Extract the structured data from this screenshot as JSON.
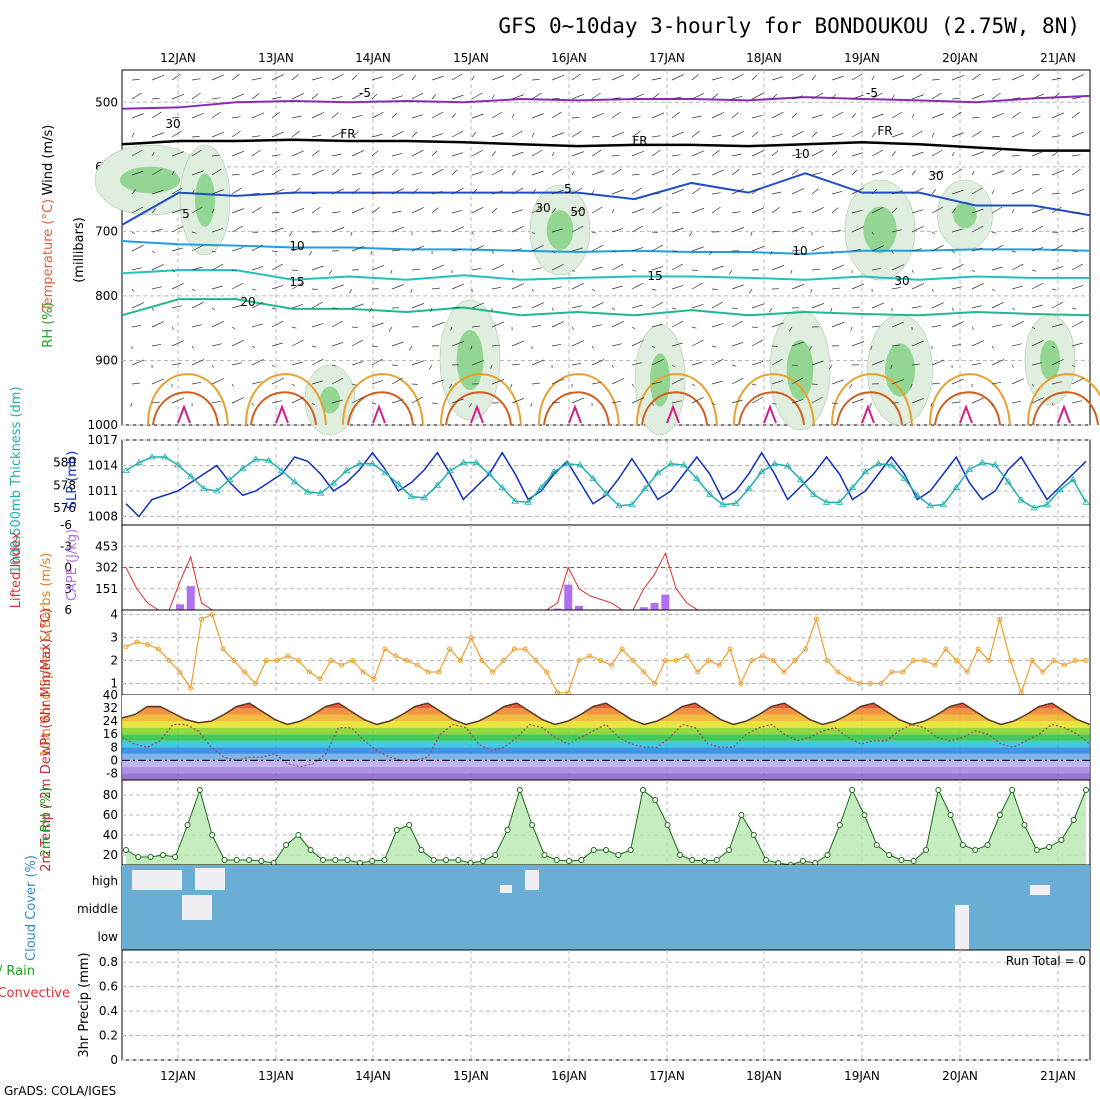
{
  "header": {
    "title": "GFS 0~10day 3-hourly for BONDOUKOU (2.75W, 8N)",
    "credit": "GrADS: COLA/IGES"
  },
  "colors": {
    "temp_minus5": "#8a2bb8",
    "temp_5": "#1f4fc8",
    "temp_10": "#1fa0e0",
    "temp_15": "#20c0c0",
    "temp_20": "#20b890",
    "freezing": "#000000",
    "slp": "#1030c0",
    "thickness": "#20b0b0",
    "cape": "#b070f0",
    "lifted_index": "#e03030",
    "wind": "#f0a030",
    "dewpoint": "#a05060",
    "rh": "#20b020",
    "cloud": "#6aaed6"
  },
  "chart_data": [
    {
      "type": "line",
      "panel": "upper-air",
      "title": "GFS 0~10day 3-hourly for BONDOUKOU (2.75W, 8N)",
      "xlabel": "",
      "ylabel": "(millibars)",
      "side_labels": [
        "Wind (m/s)",
        "Temperature (°C)",
        "RH (%)"
      ],
      "x_ticks": [
        "12JAN",
        "13JAN",
        "14JAN",
        "15JAN",
        "16JAN",
        "17JAN",
        "18JAN",
        "19JAN",
        "20JAN",
        "21JAN"
      ],
      "y_ticks": [
        "500",
        "600",
        "700",
        "800",
        "900",
        "1000"
      ],
      "ylim": [
        1000,
        450
      ],
      "contour_labels": [
        "-5",
        "-5",
        "FR",
        "FR",
        "FR",
        "5",
        "5",
        "10",
        "10",
        "15",
        "15",
        "20",
        "30",
        "30",
        "50",
        "10",
        "30",
        "30"
      ],
      "series": [
        {
          "name": "-5",
          "values": [
            510,
            508,
            500,
            498,
            500,
            498,
            500,
            495,
            497,
            495,
            495,
            497,
            492,
            495,
            497,
            500,
            494,
            490
          ]
        },
        {
          "name": "FR",
          "values": [
            565,
            560,
            560,
            558,
            560,
            560,
            562,
            565,
            568,
            566,
            566,
            568,
            565,
            562,
            565,
            570,
            575,
            575
          ]
        },
        {
          "name": "5",
          "values": [
            690,
            640,
            645,
            640,
            640,
            640,
            640,
            640,
            640,
            650,
            625,
            640,
            610,
            640,
            640,
            660,
            660,
            675
          ]
        },
        {
          "name": "10",
          "values": [
            715,
            720,
            722,
            725,
            725,
            728,
            728,
            730,
            732,
            730,
            732,
            732,
            735,
            730,
            730,
            728,
            728,
            730
          ]
        },
        {
          "name": "15",
          "values": [
            765,
            760,
            760,
            775,
            770,
            775,
            768,
            775,
            772,
            770,
            770,
            772,
            775,
            770,
            775,
            770,
            772,
            772
          ]
        },
        {
          "name": "20",
          "values": [
            830,
            805,
            805,
            820,
            820,
            825,
            818,
            830,
            825,
            830,
            822,
            830,
            825,
            828,
            830,
            825,
            828,
            830
          ]
        }
      ]
    },
    {
      "type": "line",
      "panel": "slp-thickness",
      "ylabel_left": "1000-500mb Thickness (dm)",
      "ylabel_right": "SLP (mb)",
      "y_ticks_left": [
        "580",
        "578",
        "576"
      ],
      "y_ticks_right": [
        "1017",
        "1014",
        "1011",
        "1008"
      ],
      "ylim_left": [
        574.5,
        582
      ],
      "ylim_right": [
        1007,
        1017
      ],
      "series": [
        {
          "name": "SLP (mb)",
          "values": [
            1009.5,
            1008,
            1010,
            1010.5,
            1011,
            1012,
            1013,
            1014,
            1012,
            1010.5,
            1011,
            1012,
            1013,
            1015,
            1014.5,
            1013,
            1011,
            1012,
            1013.5,
            1015.5,
            1013.5,
            1011,
            1012,
            1013.5,
            1015.5,
            1013,
            1010,
            1011.5,
            1013,
            1015.5,
            1013,
            1010,
            1011,
            1013,
            1014.5,
            1012,
            1009.5,
            1010.5,
            1012.5,
            1014.8,
            1012.5,
            1010,
            1011,
            1013,
            1015,
            1013,
            1010,
            1011,
            1013,
            1015.5,
            1013,
            1010,
            1011.5,
            1013,
            1015,
            1013,
            1010,
            1011,
            1013,
            1015,
            1013,
            1010,
            1011,
            1013,
            1015,
            1012,
            1010,
            1011,
            1013.5,
            1015,
            1012.5,
            1010,
            1011.5,
            1013,
            1014.5
          ]
        },
        {
          "name": "Thickness (dm)",
          "values": [
            579.3,
            580,
            580.5,
            580.5,
            579.8,
            578.8,
            577.7,
            577.5,
            578.5,
            579.5,
            580.3,
            580.2,
            579.3,
            578.3,
            577.4,
            577.3,
            578.2,
            579.3,
            579.9,
            579.9,
            579.1,
            578.1,
            577,
            576.9,
            578,
            579.3,
            580,
            580,
            579,
            577.8,
            576.6,
            576.5,
            577.8,
            579.2,
            579.9,
            579.8,
            578.6,
            577.3,
            576.2,
            576.3,
            577.7,
            579.1,
            579.9,
            579.8,
            578.6,
            577.2,
            576.3,
            576.4,
            577.7,
            579.2,
            579.9,
            579.7,
            578.5,
            577.2,
            576.5,
            576.5,
            577.8,
            579.2,
            579.9,
            579.8,
            578.6,
            577.1,
            576.2,
            576.3,
            577.8,
            579.4,
            580,
            579.8,
            578.3,
            576.7,
            576,
            576.3,
            577.6,
            578.5,
            576.5
          ]
        }
      ]
    },
    {
      "type": "bar",
      "panel": "cape-li",
      "ylabel_left": "Lifted Index",
      "ylabel_right": "CAPE (J/kg)",
      "y_ticks_left": [
        "-6",
        "-3",
        "0",
        "3",
        "6"
      ],
      "y_ticks_right": [
        "453",
        "302",
        "151"
      ],
      "ylim_cape": [
        0,
        604
      ],
      "ylim_li": [
        6,
        -6
      ],
      "series": [
        {
          "name": "CAPE (J/kg)",
          "values": [
            0,
            0,
            0,
            0,
            0,
            40,
            170,
            0,
            0,
            0,
            0,
            0,
            0,
            0,
            0,
            0,
            0,
            0,
            0,
            0,
            0,
            0,
            0,
            0,
            0,
            0,
            0,
            0,
            0,
            0,
            0,
            0,
            0,
            0,
            0,
            0,
            0,
            0,
            0,
            0,
            10,
            180,
            30,
            0,
            0,
            0,
            0,
            0,
            20,
            50,
            110,
            0,
            0,
            0,
            0,
            0,
            0,
            0,
            0,
            0,
            0,
            0,
            0,
            0,
            0,
            0,
            0,
            0,
            0,
            0,
            0,
            0,
            0,
            0,
            0,
            0,
            0,
            0,
            0,
            0,
            0,
            0,
            0,
            0,
            0,
            0,
            0,
            0,
            0,
            0
          ]
        },
        {
          "name": "Lifted Index",
          "values": [
            0,
            3,
            5,
            6,
            6,
            2,
            -1.5,
            5,
            6,
            6,
            6,
            6,
            6,
            6,
            6,
            6,
            6,
            6,
            6,
            6,
            6,
            6,
            6,
            6,
            6,
            6,
            6,
            6,
            6,
            6,
            6,
            6,
            6,
            6,
            6,
            6,
            6,
            6,
            6,
            6,
            5,
            0,
            3,
            4,
            4.5,
            5,
            6,
            6,
            3,
            1,
            -2,
            3,
            5,
            6,
            6,
            6,
            6,
            6,
            6,
            6,
            6,
            6,
            6,
            6,
            6,
            6,
            6,
            6,
            6,
            6,
            6,
            6,
            6,
            6,
            6,
            6,
            6,
            6,
            6,
            6,
            6,
            6,
            6,
            6,
            6,
            6,
            6,
            6,
            6,
            6
          ]
        }
      ]
    },
    {
      "type": "line",
      "panel": "wind",
      "ylabel": "10m Wind Speed & Barbs (m/s)",
      "y_ticks": [
        "4",
        "3",
        "2",
        "1"
      ],
      "ylim": [
        0.5,
        4.2
      ],
      "series": [
        {
          "name": "10m Wind Speed (m/s)",
          "values": [
            2.6,
            2.8,
            2.7,
            2.5,
            2.0,
            1.5,
            0.8,
            3.8,
            4.0,
            2.5,
            2.0,
            1.5,
            1.0,
            2.0,
            2.0,
            2.2,
            2.0,
            1.5,
            1.2,
            2.0,
            1.8,
            2.0,
            1.5,
            1.2,
            2.5,
            2.2,
            2.0,
            1.8,
            1.5,
            1.5,
            2.5,
            2.0,
            3.0,
            2.0,
            1.5,
            2.0,
            2.5,
            2.5,
            2.0,
            1.5,
            0.6,
            0.6,
            2.0,
            2.2,
            2.0,
            1.8,
            2.5,
            2.0,
            1.5,
            1.0,
            2.0,
            2.0,
            2.2,
            1.5,
            2.0,
            1.8,
            2.5,
            1.0,
            2.0,
            2.2,
            2.0,
            1.5,
            2.0,
            2.5,
            3.8,
            2.0,
            1.5,
            1.2,
            1.0,
            1.0,
            1.0,
            1.5,
            1.5,
            2.0,
            2.0,
            1.8,
            2.5,
            2.0,
            1.5,
            2.5,
            2.0,
            3.8,
            2.0,
            0.6,
            2.0,
            1.5,
            2.0,
            1.8,
            2.0,
            2.0
          ]
        }
      ]
    },
    {
      "type": "area",
      "panel": "temperature",
      "ylabel": "2m Temp / 2m DewPt (6hr Min/Max) (°C)",
      "y_ticks": [
        "40",
        "32",
        "24",
        "16",
        "8",
        "0",
        "-8"
      ],
      "ylim": [
        -12,
        40
      ],
      "series": [
        {
          "name": "2m Temp",
          "values": [
            26,
            28,
            33,
            33,
            29,
            25,
            23,
            24,
            28,
            33,
            35,
            30,
            25,
            22,
            24,
            28,
            33,
            35,
            30,
            25,
            22,
            24,
            28,
            33,
            35,
            30,
            25,
            22,
            24,
            28,
            33,
            35,
            30,
            25,
            22,
            24,
            28,
            33,
            35,
            30,
            25,
            22,
            24,
            28,
            33,
            35,
            30,
            25,
            22,
            24,
            28,
            33,
            35,
            30,
            25,
            22,
            24,
            28,
            33,
            35,
            30,
            25,
            22,
            24,
            28,
            33,
            35,
            30,
            25,
            22,
            24,
            28,
            33,
            35,
            30,
            25,
            22
          ]
        },
        {
          "name": "2m DewPt",
          "values": [
            14,
            10,
            8,
            12,
            22,
            22,
            18,
            8,
            2,
            0,
            2,
            2,
            4,
            -2,
            -4,
            -2,
            4,
            20,
            20,
            12,
            6,
            2,
            0,
            0,
            2,
            16,
            22,
            20,
            10,
            6,
            8,
            14,
            22,
            20,
            14,
            10,
            14,
            18,
            22,
            14,
            10,
            8,
            8,
            14,
            22,
            20,
            10,
            8,
            8,
            16,
            20,
            22,
            16,
            12,
            14,
            18,
            20,
            14,
            10,
            12,
            12,
            18,
            22,
            20,
            14,
            12,
            14,
            18,
            16,
            10,
            8,
            12,
            16,
            22,
            20,
            16,
            10
          ]
        }
      ]
    },
    {
      "type": "area",
      "panel": "rh",
      "ylabel": "2m RH (%)",
      "y_ticks": [
        "80",
        "60",
        "40",
        "20"
      ],
      "ylim": [
        10,
        95
      ],
      "series": [
        {
          "name": "2m RH (%)",
          "values": [
            25,
            18,
            18,
            20,
            18,
            50,
            85,
            40,
            15,
            15,
            15,
            14,
            12,
            30,
            40,
            25,
            15,
            15,
            15,
            12,
            14,
            15,
            45,
            50,
            25,
            15,
            15,
            15,
            12,
            14,
            20,
            45,
            85,
            50,
            20,
            15,
            14,
            15,
            25,
            25,
            20,
            25,
            85,
            75,
            50,
            20,
            15,
            14,
            15,
            25,
            60,
            40,
            15,
            12,
            10,
            14,
            12,
            20,
            50,
            85,
            60,
            30,
            20,
            15,
            14,
            25,
            85,
            60,
            30,
            25,
            30,
            60,
            85,
            50,
            25,
            28,
            35,
            55,
            85
          ]
        }
      ]
    },
    {
      "type": "heatmap",
      "panel": "cloud",
      "ylabel": "Cloud Cover (%)",
      "y_ticks": [
        "high",
        "middle",
        "low"
      ],
      "legend": "white = clear, blue = cloud"
    },
    {
      "type": "bar",
      "panel": "precip",
      "ylabel": "3hr Precip (mm)",
      "side_labels": [
        "Total / Rain",
        "Convective"
      ],
      "annotation": "Run Total = 0",
      "y_ticks": [
        "0.8",
        "0.6",
        "0.4",
        "0.2",
        "0"
      ],
      "ylim": [
        0,
        0.9
      ],
      "values": []
    }
  ]
}
